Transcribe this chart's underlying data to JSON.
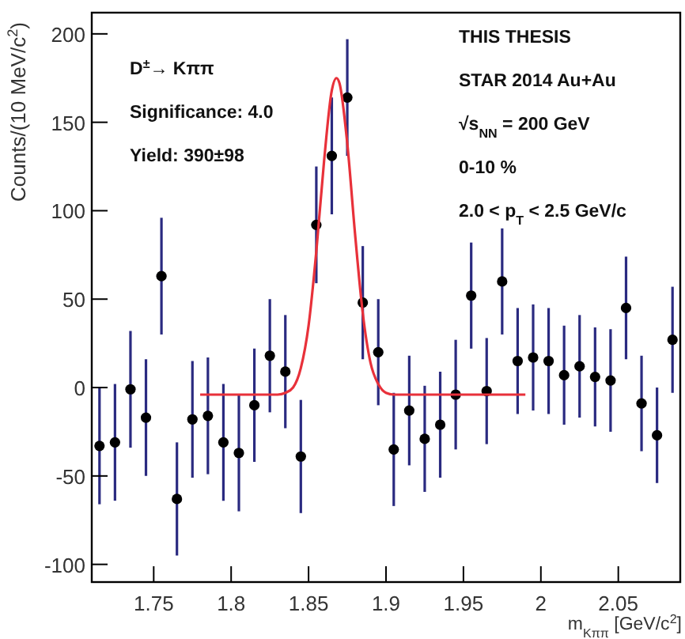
{
  "chart_data": {
    "type": "scatter",
    "xlabel": "m$_{Kππ}$ [GeV/c$^{2}$]",
    "ylabel": "Counts/(10 MeV/c$^{2}$)",
    "xlim": [
      1.71,
      2.09
    ],
    "ylim": [
      -110,
      212
    ],
    "xticks": [
      {
        "value": 1.75,
        "label": "1.75"
      },
      {
        "value": 1.8,
        "label": "1.8"
      },
      {
        "value": 1.85,
        "label": "1.85"
      },
      {
        "value": 1.9,
        "label": "1.9"
      },
      {
        "value": 1.95,
        "label": "1.95"
      },
      {
        "value": 2,
        "label": "2"
      },
      {
        "value": 2.05,
        "label": "2.05"
      }
    ],
    "yticks": [
      -100,
      -50,
      0,
      50,
      100,
      150,
      200
    ],
    "grid": false,
    "marker": "circle",
    "annotations": [
      "D$^{±}$→ Kππ",
      "Significance: 4.0",
      "Yield: 390±98",
      "THIS THESIS",
      "STAR 2014 Au+Au",
      "√s$_{NN}$ = 200 GeV",
      "0-10 %",
      "2.0 < p$_{T}$ < 2.5 GeV/c"
    ],
    "series": [
      {
        "type": "scatter",
        "color": "#000000",
        "x": [
          1.715,
          1.725,
          1.735,
          1.745,
          1.755,
          1.765,
          1.775,
          1.785,
          1.795,
          1.805,
          1.815,
          1.825,
          1.835,
          1.845,
          1.855,
          1.865,
          1.875,
          1.885,
          1.895,
          1.905,
          1.915,
          1.925,
          1.935,
          1.945,
          1.955,
          1.965,
          1.975,
          1.985,
          1.995,
          2.005,
          2.015,
          2.025,
          2.035,
          2.045,
          2.055,
          2.065,
          2.075,
          2.085
        ],
        "values": [
          -33,
          -31,
          -1,
          -17,
          63,
          -63,
          -18,
          -16,
          -31,
          -37,
          -10,
          18,
          9,
          -39,
          92,
          131,
          164,
          48,
          20,
          -35,
          -13,
          -29,
          -21,
          -4,
          52,
          -2,
          60,
          15,
          17,
          15,
          7,
          12,
          6,
          4,
          45,
          -9,
          -27,
          27
        ],
        "errors": [
          33,
          33,
          33,
          33,
          33,
          32,
          33,
          33,
          33,
          33,
          32,
          32,
          32,
          32,
          33,
          33,
          33,
          32,
          30,
          32,
          31,
          30,
          30,
          31,
          30,
          30,
          30,
          30,
          30,
          30,
          28,
          29,
          28,
          29,
          29,
          27,
          27,
          30
        ]
      },
      {
        "type": "line",
        "color": "#e8313a",
        "marker": "none",
        "line_style": "solid",
        "x": [
          1.78,
          1.83,
          1.835,
          1.84,
          1.845,
          1.85,
          1.855,
          1.86,
          1.865,
          1.868,
          1.87,
          1.875,
          1.88,
          1.885,
          1.89,
          1.895,
          1.9,
          1.905,
          1.99
        ],
        "values": [
          -4,
          -4,
          -3,
          0,
          11,
          35,
          77,
          128,
          168,
          175,
          172,
          138,
          87,
          42,
          14,
          2,
          -3,
          -4,
          -4
        ]
      }
    ]
  }
}
